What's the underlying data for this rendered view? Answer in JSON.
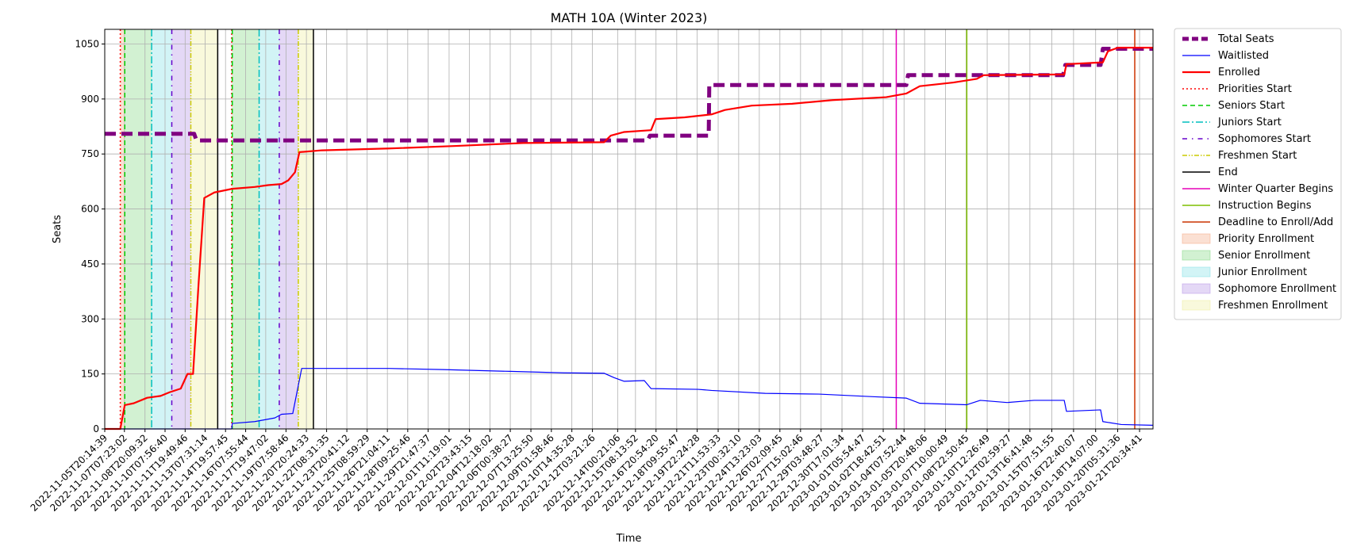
{
  "chart_data": {
    "type": "line",
    "title": "MATH 10A (Winter 2023)",
    "xlabel": "Time",
    "ylabel": "Seats",
    "ylim": [
      0,
      1090
    ],
    "yticks": [
      0,
      150,
      300,
      450,
      600,
      750,
      900,
      1050
    ],
    "grid": true,
    "legend_position": "outside-right",
    "xlim": [
      "2022-11-05T20:14:39",
      "2023-01-22T20:34:41"
    ],
    "x_tick_labels": [
      "2022-11-05T20:14:39",
      "2022-11-07T07:23:02",
      "2022-11-08T20:09:32",
      "2022-11-10T07:56:40",
      "2022-11-11T19:49:46",
      "2022-11-13T07:31:14",
      "2022-11-14T19:57:45",
      "2022-11-16T07:55:44",
      "2022-11-17T19:47:02",
      "2022-11-19T07:58:46",
      "2022-11-20T20:24:33",
      "2022-11-22T08:31:35",
      "2022-11-23T20:41:12",
      "2022-11-25T08:59:29",
      "2022-11-26T21:04:11",
      "2022-11-28T09:25:46",
      "2022-11-29T21:47:37",
      "2022-12-01T11:19:01",
      "2022-12-02T23:43:15",
      "2022-12-04T12:18:02",
      "2022-12-06T00:38:27",
      "2022-12-07T13:25:50",
      "2022-12-09T01:58:46",
      "2022-12-10T14:35:28",
      "2022-12-12T03:21:26",
      "2022-12-14T00:21:06",
      "2022-12-15T08:13:52",
      "2022-12-16T20:54:20",
      "2022-12-18T09:55:47",
      "2022-12-19T22:24:28",
      "2022-12-21T11:53:33",
      "2022-12-23T00:32:10",
      "2022-12-24T13:23:03",
      "2022-12-26T02:09:45",
      "2022-12-27T15:02:46",
      "2022-12-29T03:48:27",
      "2022-12-30T17:01:34",
      "2023-01-01T05:54:47",
      "2023-01-02T18:42:51",
      "2023-01-04T07:52:44",
      "2023-01-05T20:48:06",
      "2023-01-07T10:00:49",
      "2023-01-08T22:50:45",
      "2023-01-10T12:26:49",
      "2023-01-12T02:59:27",
      "2023-01-13T16:41:48",
      "2023-01-15T07:51:55",
      "2023-01-16T22:40:07",
      "2023-01-18T14:07:00",
      "2023-01-20T05:31:36",
      "2023-01-21T20:34:41"
    ],
    "series": [
      {
        "name": "Total Seats",
        "color": "#800080",
        "style": "dashed-thick",
        "points": [
          [
            "2022-11-05T20:14:39",
            805
          ],
          [
            "2022-11-12T12:00:00",
            805
          ],
          [
            "2022-11-12T16:00:00",
            787
          ],
          [
            "2022-12-16T06:00:00",
            787
          ],
          [
            "2022-12-16T10:00:00",
            800
          ],
          [
            "2022-12-20T19:00:00",
            800
          ],
          [
            "2022-12-20T20:00:00",
            938
          ],
          [
            "2023-01-04T12:00:00",
            938
          ],
          [
            "2023-01-04T15:00:00",
            965
          ],
          [
            "2023-01-16T04:00:00",
            965
          ],
          [
            "2023-01-16T08:00:00",
            993
          ],
          [
            "2023-01-18T23:00:00",
            993
          ],
          [
            "2023-01-19T03:00:00",
            1037
          ],
          [
            "2023-01-22T20:34:41",
            1037
          ]
        ]
      },
      {
        "name": "Waitlisted",
        "color": "#0000ff",
        "style": "solid-thin",
        "points": [
          [
            "2022-11-05T20:14:39",
            0
          ],
          [
            "2022-11-15T07:00:00",
            0
          ],
          [
            "2022-11-15T08:00:00",
            15
          ],
          [
            "2022-11-17T00:00:00",
            20
          ],
          [
            "2022-11-18T12:00:00",
            30
          ],
          [
            "2022-11-19T00:00:00",
            40
          ],
          [
            "2022-11-19T20:00:00",
            42
          ],
          [
            "2022-11-20T12:00:00",
            165
          ],
          [
            "2022-11-27T00:00:00",
            165
          ],
          [
            "2022-12-01T00:00:00",
            162
          ],
          [
            "2022-12-06T00:00:00",
            157
          ],
          [
            "2022-12-10T00:00:00",
            153
          ],
          [
            "2022-12-13T00:00:00",
            152
          ],
          [
            "2022-12-13T18:00:00",
            140
          ],
          [
            "2022-12-14T12:00:00",
            130
          ],
          [
            "2022-12-16T00:00:00",
            132
          ],
          [
            "2022-12-16T12:00:00",
            110
          ],
          [
            "2022-12-20T00:00:00",
            108
          ],
          [
            "2022-12-21T00:00:00",
            105
          ],
          [
            "2022-12-25T00:00:00",
            97
          ],
          [
            "2022-12-29T00:00:00",
            95
          ],
          [
            "2023-01-02T00:00:00",
            88
          ],
          [
            "2023-01-04T12:00:00",
            84
          ],
          [
            "2023-01-05T12:00:00",
            70
          ],
          [
            "2023-01-09T00:00:00",
            66
          ],
          [
            "2023-01-10T00:00:00",
            78
          ],
          [
            "2023-01-12T00:00:00",
            72
          ],
          [
            "2023-01-14T00:00:00",
            78
          ],
          [
            "2023-01-16T06:00:00",
            78
          ],
          [
            "2023-01-16T10:00:00",
            48
          ],
          [
            "2023-01-18T23:00:00",
            52
          ],
          [
            "2023-01-19T03:00:00",
            20
          ],
          [
            "2023-01-20T12:00:00",
            12
          ],
          [
            "2023-01-22T20:34:41",
            10
          ]
        ]
      },
      {
        "name": "Enrolled",
        "color": "#ff0000",
        "style": "solid-thick",
        "points": [
          [
            "2022-11-05T20:14:39",
            0
          ],
          [
            "2022-11-07T00:00:00",
            0
          ],
          [
            "2022-11-07T08:00:00",
            65
          ],
          [
            "2022-11-08T00:00:00",
            70
          ],
          [
            "2022-11-09T00:00:00",
            85
          ],
          [
            "2022-11-10T00:00:00",
            90
          ],
          [
            "2022-11-10T16:00:00",
            100
          ],
          [
            "2022-11-11T12:00:00",
            110
          ],
          [
            "2022-11-12T00:00:00",
            150
          ],
          [
            "2022-11-12T10:00:00",
            150
          ],
          [
            "2022-11-12T20:00:00",
            400
          ],
          [
            "2022-11-13T06:00:00",
            630
          ],
          [
            "2022-11-14T00:00:00",
            645
          ],
          [
            "2022-11-15T08:00:00",
            655
          ],
          [
            "2022-11-17T00:00:00",
            660
          ],
          [
            "2022-11-18T00:00:00",
            665
          ],
          [
            "2022-11-19T00:00:00",
            668
          ],
          [
            "2022-11-19T12:00:00",
            678
          ],
          [
            "2022-11-20T00:00:00",
            700
          ],
          [
            "2022-11-20T08:00:00",
            755
          ],
          [
            "2022-11-22T00:00:00",
            760
          ],
          [
            "2022-11-27T00:00:00",
            765
          ],
          [
            "2022-12-02T00:00:00",
            772
          ],
          [
            "2022-12-07T00:00:00",
            780
          ],
          [
            "2022-12-13T00:00:00",
            782
          ],
          [
            "2022-12-13T12:00:00",
            800
          ],
          [
            "2022-12-14T12:00:00",
            810
          ],
          [
            "2022-12-16T12:00:00",
            815
          ],
          [
            "2022-12-16T20:00:00",
            845
          ],
          [
            "2022-12-19T00:00:00",
            850
          ],
          [
            "2022-12-21T00:00:00",
            858
          ],
          [
            "2022-12-22T00:00:00",
            870
          ],
          [
            "2022-12-24T00:00:00",
            882
          ],
          [
            "2022-12-27T00:00:00",
            887
          ],
          [
            "2022-12-30T00:00:00",
            897
          ],
          [
            "2023-01-03T00:00:00",
            905
          ],
          [
            "2023-01-04T12:00:00",
            915
          ],
          [
            "2023-01-05T12:00:00",
            935
          ],
          [
            "2023-01-08T00:00:00",
            945
          ],
          [
            "2023-01-09T18:00:00",
            955
          ],
          [
            "2023-01-10T06:00:00",
            965
          ],
          [
            "2023-01-16T06:00:00",
            967
          ],
          [
            "2023-01-16T10:00:00",
            995
          ],
          [
            "2023-01-19T03:00:00",
            1000
          ],
          [
            "2023-01-19T12:00:00",
            1030
          ],
          [
            "2023-01-20T06:00:00",
            1040
          ],
          [
            "2023-01-22T20:34:41",
            1040
          ]
        ]
      }
    ],
    "vertical_lines": [
      {
        "name": "Priorities Start",
        "color": "#ff0000",
        "style": "dotted",
        "x": [
          "2022-11-07T00:00:00",
          "2022-11-15T07:00:00"
        ]
      },
      {
        "name": "Seniors Start",
        "color": "#00cc00",
        "style": "dashed",
        "x": [
          "2022-11-07T08:00:00",
          "2022-11-15T08:00:00"
        ]
      },
      {
        "name": "Juniors Start",
        "color": "#00bfbf",
        "style": "dashdot",
        "x": [
          "2022-11-09T08:00:00",
          "2022-11-17T08:00:00"
        ]
      },
      {
        "name": "Sophomores Start",
        "color": "#6600cc",
        "style": "dashdot-sparse",
        "x": [
          "2022-11-10T20:00:00",
          "2022-11-18T20:00:00"
        ]
      },
      {
        "name": "Freshmen Start",
        "color": "#cccc00",
        "style": "dashdotdot",
        "x": [
          "2022-11-12T06:00:00",
          "2022-11-20T06:00:00"
        ]
      },
      {
        "name": "End",
        "color": "#000000",
        "style": "solid",
        "x": [
          "2022-11-14T06:00:00",
          "2022-11-21T09:00:00"
        ]
      },
      {
        "name": "Winter Quarter Begins",
        "color": "#e600b8",
        "style": "solid",
        "x": [
          "2023-01-03T18:00:00"
        ]
      },
      {
        "name": "Instruction Begins",
        "color": "#7fbf00",
        "style": "solid",
        "x": [
          "2023-01-09T00:00:00"
        ]
      },
      {
        "name": "Deadline to Enroll/Add",
        "color": "#cc3300",
        "style": "solid",
        "x": [
          "2023-01-21T12:00:00"
        ]
      }
    ],
    "shaded_regions": [
      {
        "name": "Priority Enrollment",
        "color": "#f4a582",
        "spans": [
          [
            "2022-11-07T00:00:00",
            "2022-11-07T08:00:00"
          ],
          [
            "2022-11-15T07:00:00",
            "2022-11-15T08:00:00"
          ]
        ]
      },
      {
        "name": "Senior Enrollment",
        "color": "#7fd87f",
        "spans": [
          [
            "2022-11-07T08:00:00",
            "2022-11-09T08:00:00"
          ],
          [
            "2022-11-15T08:00:00",
            "2022-11-17T08:00:00"
          ]
        ]
      },
      {
        "name": "Junior Enrollment",
        "color": "#7fe0e6",
        "spans": [
          [
            "2022-11-09T08:00:00",
            "2022-11-10T20:00:00"
          ],
          [
            "2022-11-17T08:00:00",
            "2022-11-18T20:00:00"
          ]
        ]
      },
      {
        "name": "Sophomore Enrollment",
        "color": "#b38fe6",
        "spans": [
          [
            "2022-11-10T20:00:00",
            "2022-11-12T06:00:00"
          ],
          [
            "2022-11-18T20:00:00",
            "2022-11-20T06:00:00"
          ]
        ]
      },
      {
        "name": "Freshmen Enrollment",
        "color": "#eeee9a",
        "spans": [
          [
            "2022-11-12T06:00:00",
            "2022-11-14T06:00:00"
          ],
          [
            "2022-11-20T06:00:00",
            "2022-11-21T09:00:00"
          ]
        ]
      }
    ],
    "legend": [
      "Total Seats",
      "Waitlisted",
      "Enrolled",
      "Priorities Start",
      "Seniors Start",
      "Juniors Start",
      "Sophomores Start",
      "Freshmen Start",
      "End",
      "Winter Quarter Begins",
      "Instruction Begins",
      "Deadline to Enroll/Add",
      "Priority Enrollment",
      "Senior Enrollment",
      "Junior Enrollment",
      "Sophomore Enrollment",
      "Freshmen Enrollment"
    ]
  }
}
